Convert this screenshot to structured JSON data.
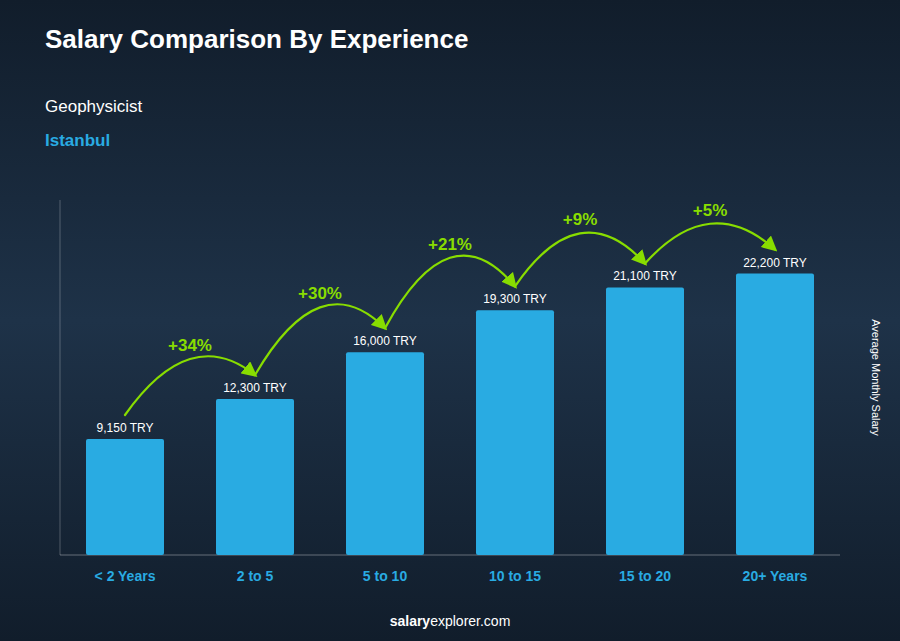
{
  "chart_data": {
    "type": "bar",
    "title": "Salary Comparison By Experience",
    "subtitle": [
      "Geophysicist",
      "Istanbul"
    ],
    "ylabel": "Average Monthly Salary",
    "categories": [
      "< 2 Years",
      "2 to 5",
      "5 to 10",
      "10 to 15",
      "15 to 20",
      "20+ Years"
    ],
    "values": [
      9150,
      12300,
      16000,
      19300,
      21100,
      22200
    ],
    "value_labels": [
      "9,150 TRY",
      "12,300 TRY",
      "16,000 TRY",
      "19,300 TRY",
      "21,100 TRY",
      "22,200 TRY"
    ],
    "data_labels": true,
    "color": "#29ABE2",
    "annotations": [
      {
        "text": "+34%",
        "color": "#88DD00"
      },
      {
        "text": "+30%",
        "color": "#88DD00"
      },
      {
        "text": "+21%",
        "color": "#88DD00"
      },
      {
        "text": "+9%",
        "color": "#88DD00"
      },
      {
        "text": "+5%",
        "color": "#88DD00"
      }
    ],
    "ylim": [
      0,
      28000
    ],
    "yticks": [],
    "tick_labels": "x",
    "grid": false,
    "footer": [
      "salary",
      "explorer.com"
    ]
  }
}
